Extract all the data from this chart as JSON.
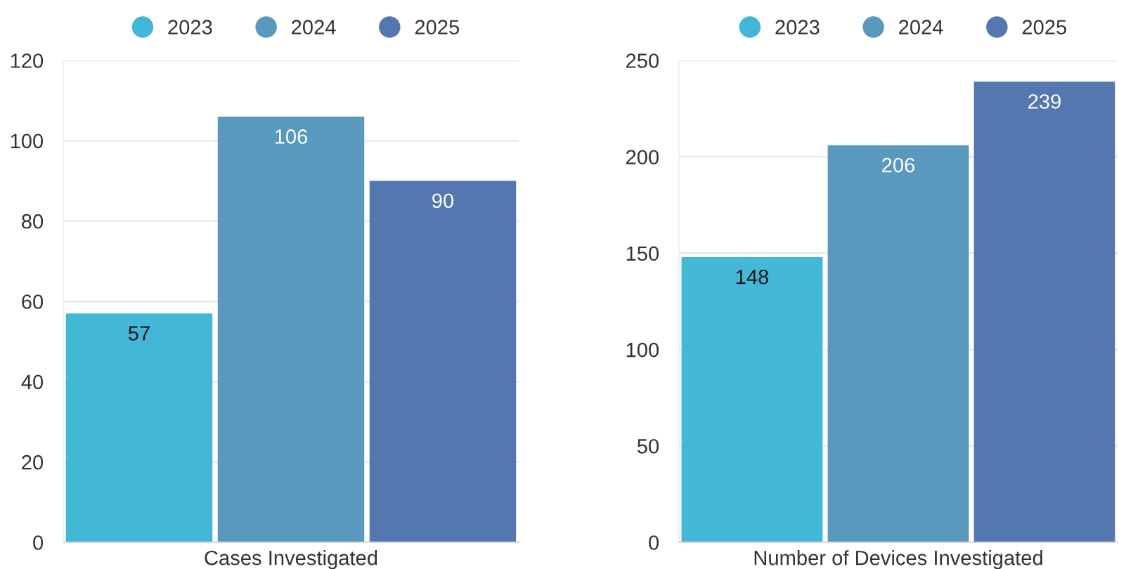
{
  "chart_data": [
    {
      "type": "bar",
      "categories": [
        "Cases Investigated"
      ],
      "series": [
        {
          "name": "2023",
          "color": "#42b7d6",
          "values": [
            57
          ]
        },
        {
          "name": "2024",
          "color": "#5a98bd",
          "values": [
            106
          ]
        },
        {
          "name": "2025",
          "color": "#5577b0",
          "values": [
            90
          ]
        }
      ],
      "ylim": [
        0,
        120
      ],
      "yticks": [
        0,
        20,
        40,
        60,
        80,
        100,
        120
      ],
      "grid": "y",
      "legend": "top",
      "data_labels": true
    },
    {
      "type": "bar",
      "categories": [
        "Number of Devices Investigated"
      ],
      "series": [
        {
          "name": "2023",
          "color": "#42b7d6",
          "values": [
            148
          ]
        },
        {
          "name": "2024",
          "color": "#5a98bd",
          "values": [
            206
          ]
        },
        {
          "name": "2025",
          "color": "#5577b0",
          "values": [
            239
          ]
        }
      ],
      "ylim": [
        0,
        250
      ],
      "yticks": [
        0,
        50,
        100,
        150,
        200,
        250
      ],
      "grid": "y",
      "legend": "top",
      "data_labels": true
    }
  ]
}
